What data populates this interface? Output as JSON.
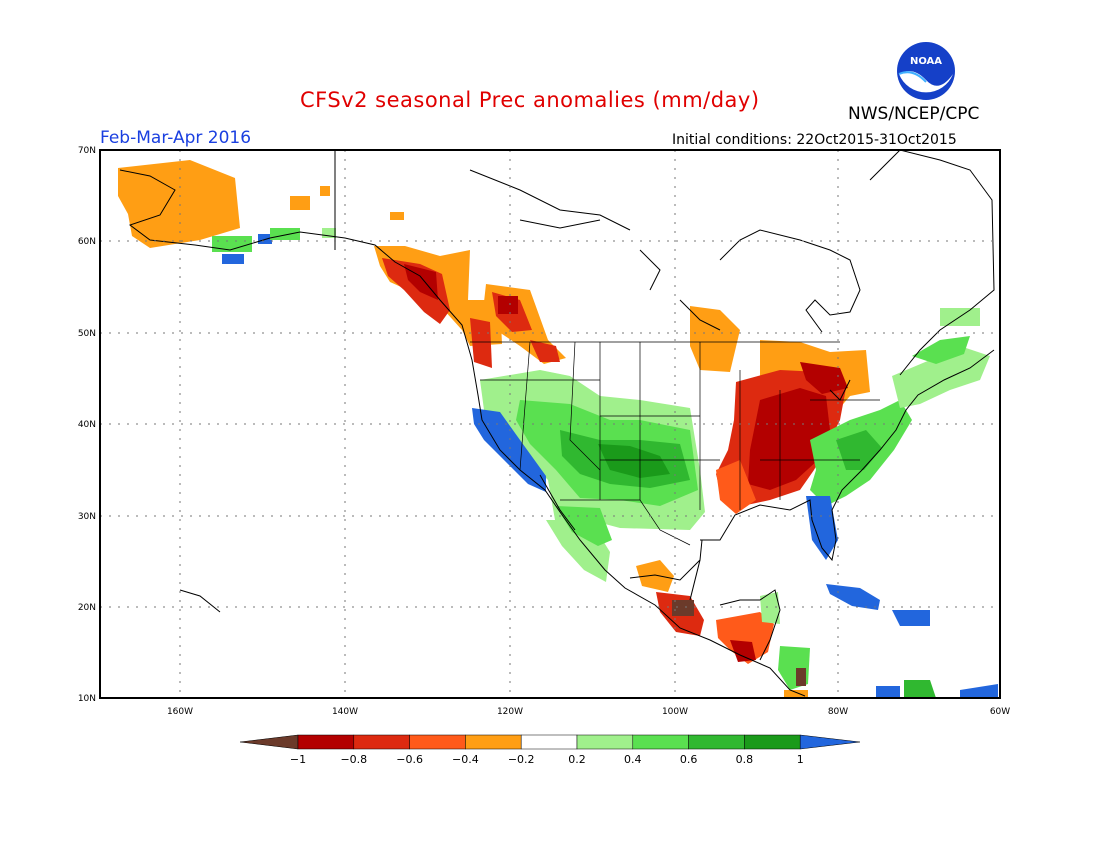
{
  "title": "CFSv2 seasonal Prec anomalies (mm/day)",
  "season": "Feb-Mar-Apr 2016",
  "initial_conditions": "Initial conditions: 22Oct2015-31Oct2015",
  "agency": "NWS/NCEP/CPC",
  "logo_text": "NOAA",
  "lat_labels": [
    "70N",
    "60N",
    "50N",
    "40N",
    "30N",
    "20N",
    "10N"
  ],
  "lon_labels": [
    "160W",
    "140W",
    "120W",
    "100W",
    "80W",
    "60W"
  ],
  "colorbar": {
    "labels": [
      "-1",
      "-0.8",
      "-0.6",
      "-0.4",
      "-0.2",
      "0.2",
      "0.4",
      "0.6",
      "0.8",
      "1"
    ],
    "colors": [
      "#6b3a2a",
      "#b30000",
      "#dd2a10",
      "#ff5a1a",
      "#ff9e14",
      "#ffffff",
      "#a0f08c",
      "#5ae050",
      "#30b830",
      "#1a9a1a",
      "#2266dd"
    ]
  },
  "colors": {
    "title": "#e00000",
    "season": "#1a3fe0",
    "dry_strong": "#b30000",
    "dry": "#dd2a10",
    "dry_light": "#ff9e14",
    "wet_light": "#a0f08c",
    "wet": "#5ae050",
    "wet_strong": "#1a9a1a",
    "wet_max": "#2266dd"
  }
}
